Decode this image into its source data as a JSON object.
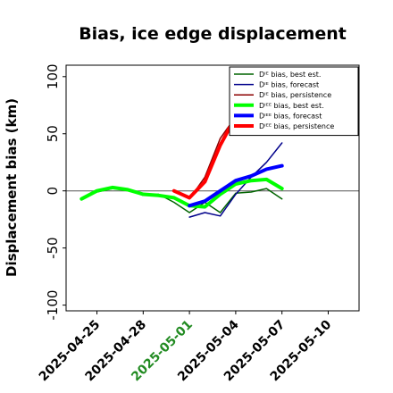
{
  "chart_data": {
    "type": "line",
    "title": "Bias, ice edge displacement",
    "xlabel": "",
    "ylabel": "Displacement bias (km)",
    "x_range": [
      "2025-04-23",
      "2025-05-12"
    ],
    "ylim": [
      -105,
      110
    ],
    "y_ticks": [
      -100,
      -50,
      0,
      50,
      100
    ],
    "x_ticks": [
      "2025-04-25",
      "2025-04-28",
      "2025-05-01",
      "2025-05-04",
      "2025-05-07",
      "2025-05-10"
    ],
    "highlighted_x_tick": "2025-05-01",
    "highlight_color": "#228B22",
    "legend_position": "top-right",
    "zero_line": true,
    "series": [
      {
        "name": "Dᴵᴱ bias, best est.",
        "color": "#006400",
        "width": 1.5,
        "points": [
          [
            "2025-04-24",
            -7
          ],
          [
            "2025-04-25",
            -1
          ],
          [
            "2025-04-26",
            2
          ],
          [
            "2025-04-27",
            1
          ],
          [
            "2025-04-28",
            -4
          ],
          [
            "2025-04-29",
            -3
          ],
          [
            "2025-04-30",
            -10
          ],
          [
            "2025-05-01",
            -19
          ],
          [
            "2025-05-02",
            -10
          ],
          [
            "2025-05-03",
            -19
          ],
          [
            "2025-05-04",
            -2
          ],
          [
            "2025-05-05",
            -1
          ],
          [
            "2025-05-06",
            2
          ],
          [
            "2025-05-07",
            -7
          ]
        ]
      },
      {
        "name": "Dᴵᴱ bias, forecast",
        "color": "#00008B",
        "width": 1.5,
        "points": [
          [
            "2025-05-01",
            -23
          ],
          [
            "2025-05-02",
            -19
          ],
          [
            "2025-05-03",
            -22
          ],
          [
            "2025-05-04",
            -3
          ],
          [
            "2025-05-05",
            12
          ],
          [
            "2025-05-06",
            25
          ],
          [
            "2025-05-07",
            42
          ]
        ]
      },
      {
        "name": "Dᴵᴱ bias, persistence",
        "color": "#8B0000",
        "width": 1.5,
        "points": [
          [
            "2025-04-30",
            0
          ],
          [
            "2025-05-01",
            -7
          ],
          [
            "2025-05-02",
            12
          ],
          [
            "2025-05-03",
            46
          ],
          [
            "2025-05-04",
            65
          ]
        ]
      },
      {
        "name": "Dᴵᴱᴱ bias, best est.",
        "color": "#00FF00",
        "width": 4,
        "points": [
          [
            "2025-04-24",
            -7
          ],
          [
            "2025-04-25",
            0
          ],
          [
            "2025-04-26",
            3
          ],
          [
            "2025-04-27",
            1
          ],
          [
            "2025-04-28",
            -3
          ],
          [
            "2025-04-29",
            -4
          ],
          [
            "2025-04-30",
            -6
          ],
          [
            "2025-05-01",
            -13
          ],
          [
            "2025-05-02",
            -14
          ],
          [
            "2025-05-03",
            -3
          ],
          [
            "2025-05-04",
            6
          ],
          [
            "2025-05-05",
            9
          ],
          [
            "2025-05-06",
            10
          ],
          [
            "2025-05-07",
            2
          ]
        ]
      },
      {
        "name": "Dᴵᴱᴱ bias, forecast",
        "color": "#0000FF",
        "width": 4,
        "points": [
          [
            "2025-05-01",
            -13
          ],
          [
            "2025-05-02",
            -9
          ],
          [
            "2025-05-03",
            0
          ],
          [
            "2025-05-04",
            9
          ],
          [
            "2025-05-05",
            13
          ],
          [
            "2025-05-06",
            19
          ],
          [
            "2025-05-07",
            22
          ]
        ]
      },
      {
        "name": "Dᴵᴱᴱ bias, persistence",
        "color": "#FF0000",
        "width": 4,
        "points": [
          [
            "2025-04-30",
            0
          ],
          [
            "2025-05-01",
            -6
          ],
          [
            "2025-05-02",
            8
          ],
          [
            "2025-05-03",
            40
          ],
          [
            "2025-05-04",
            65
          ]
        ]
      }
    ]
  }
}
